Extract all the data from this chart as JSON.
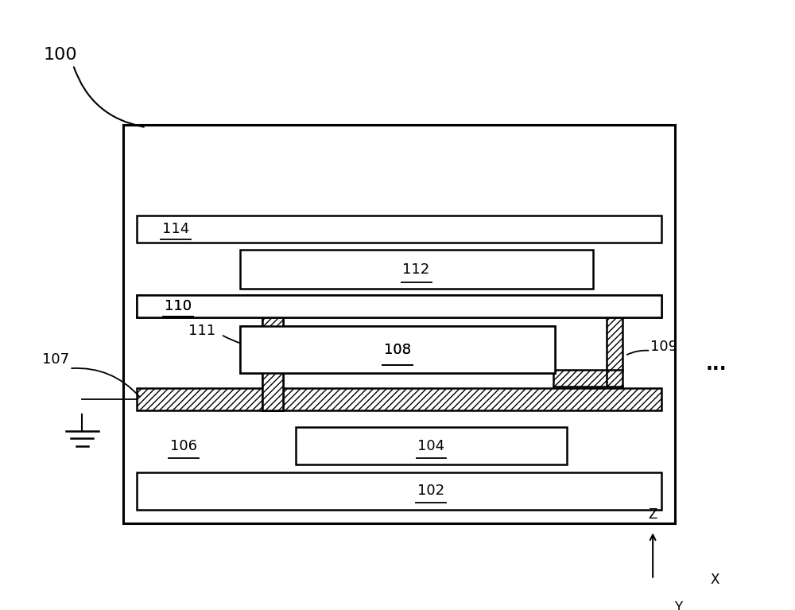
{
  "bg_color": "#ffffff",
  "lc": "#000000",
  "fig_w": 10.0,
  "fig_h": 7.67,
  "lw": 1.8,
  "lw_thick": 2.2,
  "labels": {
    "100": "100",
    "102": "102",
    "104": "104",
    "106": "106",
    "107": "107",
    "108": "108",
    "109": "109",
    "110": "110",
    "111": "111",
    "112": "112",
    "114": "114"
  },
  "dots": "...",
  "hatch": "////",
  "fs": 13,
  "fs_big": 16
}
